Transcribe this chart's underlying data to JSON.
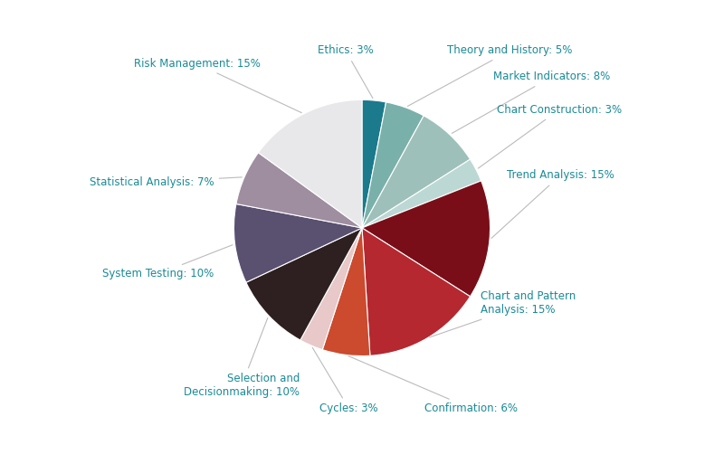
{
  "display_labels": [
    "Ethics: 3%",
    "Theory and History: 5%",
    "Market Indicators: 8%",
    "Chart Construction: 3%",
    "Trend Analysis: 15%",
    "Chart and Pattern\nAnalysis: 15%",
    "Confirmation: 6%",
    "Cycles: 3%",
    "Selection and\nDecisionmaking: 10%",
    "System Testing: 10%",
    "Statistical Analysis: 7%",
    "Risk Management: 15%"
  ],
  "values": [
    3,
    5,
    8,
    3,
    15,
    15,
    6,
    3,
    10,
    10,
    7,
    15
  ],
  "colors": [
    "#1b7a8c",
    "#7ab0aa",
    "#9ec0ba",
    "#bcd8d4",
    "#7a0e18",
    "#b52830",
    "#cc4a2e",
    "#e8c8c8",
    "#2e2020",
    "#5a5070",
    "#9e8ea0",
    "#e8e8ea"
  ],
  "label_color": "#1a8a96",
  "startangle": 90,
  "figsize": [
    8.0,
    5.13
  ],
  "dpi": 100
}
